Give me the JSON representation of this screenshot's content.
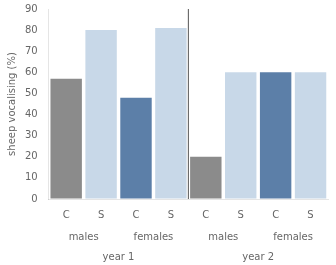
{
  "chart_data": {
    "type": "bar",
    "ylabel": "sheep vocalising (%)",
    "categories": [
      "C",
      "S",
      "C",
      "S",
      "C",
      "S",
      "C",
      "S"
    ],
    "values": [
      57,
      80,
      48,
      81,
      20,
      60,
      60,
      60
    ],
    "colors": [
      "#8B8B8B",
      "#C8D8E8",
      "#5C7FA8",
      "#C8D8E8",
      "#8B8B8B",
      "#C8D8E8",
      "#5C7FA8",
      "#C8D8E8"
    ],
    "group_labels": [
      "males",
      "females",
      "males",
      "females"
    ],
    "year_labels": [
      "year 1",
      "year 2"
    ],
    "ylim": [
      0,
      90
    ],
    "yticks": [
      0,
      10,
      20,
      30,
      40,
      50,
      60,
      70,
      80,
      90
    ],
    "grid": false
  }
}
